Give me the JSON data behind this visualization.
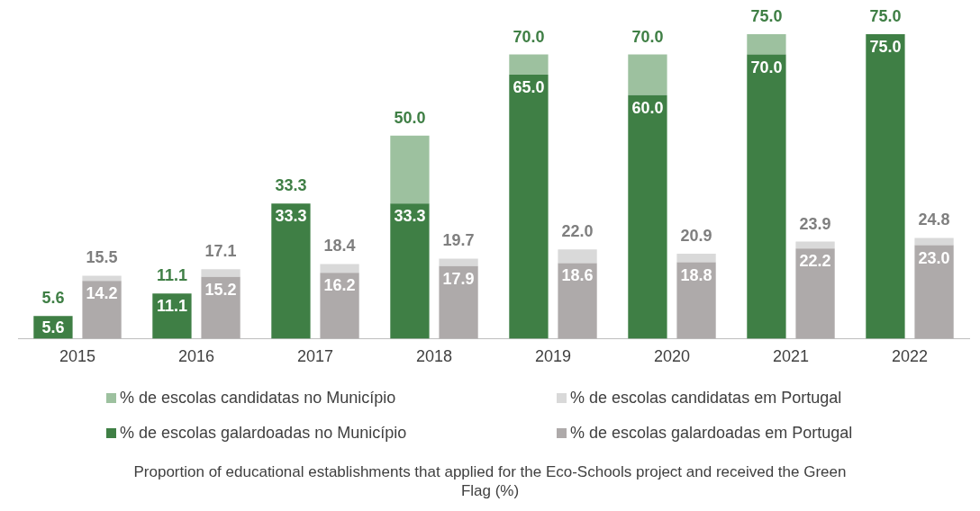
{
  "chart_data": [
    {
      "type": "bar",
      "title": "Proportion of educational establishments that applied for the Eco-Schools project and received the Green Flag (%)",
      "categories": [
        "2015",
        "2016",
        "2017",
        "2018",
        "2019",
        "2020",
        "2021",
        "2022"
      ],
      "stacked": true,
      "legend": "bottom",
      "series": [
        {
          "name": "% de escolas galardoadas no Município",
          "color": "#3f7f45",
          "values": [
            5.6,
            11.1,
            33.3,
            33.3,
            65.0,
            60.0,
            70.0,
            75.0
          ],
          "value_labels": [
            "5.6",
            "11.1",
            "33.3",
            "33.3",
            "65.0",
            "60.0",
            "70.0",
            "75.0"
          ]
        },
        {
          "name": "% de escolas candidatas no Município",
          "color": "#9dc19f",
          "values": [
            0,
            0,
            0,
            16.7,
            5.0,
            10.0,
            5.0,
            0
          ]
        }
      ],
      "totals": [
        "5.6",
        "11.1",
        "33.3",
        "50.0",
        "70.0",
        "70.0",
        "75.0",
        "75.0"
      ]
    },
    {
      "type": "bar",
      "categories": [
        "2015",
        "2016",
        "2017",
        "2018",
        "2019",
        "2020",
        "2021",
        "2022"
      ],
      "stacked": true,
      "legend": "bottom",
      "tick_labels": false,
      "series": [
        {
          "name": "% de escolas galardoadas em Portugal",
          "color": "#aeaaaa",
          "values": [
            14.2,
            15.2,
            16.2,
            17.9,
            18.6,
            18.8,
            22.2,
            23.0
          ],
          "value_labels": [
            "14.2",
            "15.2",
            "16.2",
            "17.9",
            "18.6",
            "18.8",
            "22.2",
            "23.0"
          ]
        },
        {
          "name": "% de escolas candidatas em Portugal",
          "color": "#d9d9d9",
          "values": [
            1.3,
            1.9,
            2.2,
            1.8,
            3.4,
            2.1,
            1.7,
            1.8
          ]
        }
      ],
      "totals": [
        "15.5",
        "17.1",
        "18.4",
        "19.7",
        "22.0",
        "20.9",
        "23.9",
        "24.8"
      ]
    }
  ]
}
